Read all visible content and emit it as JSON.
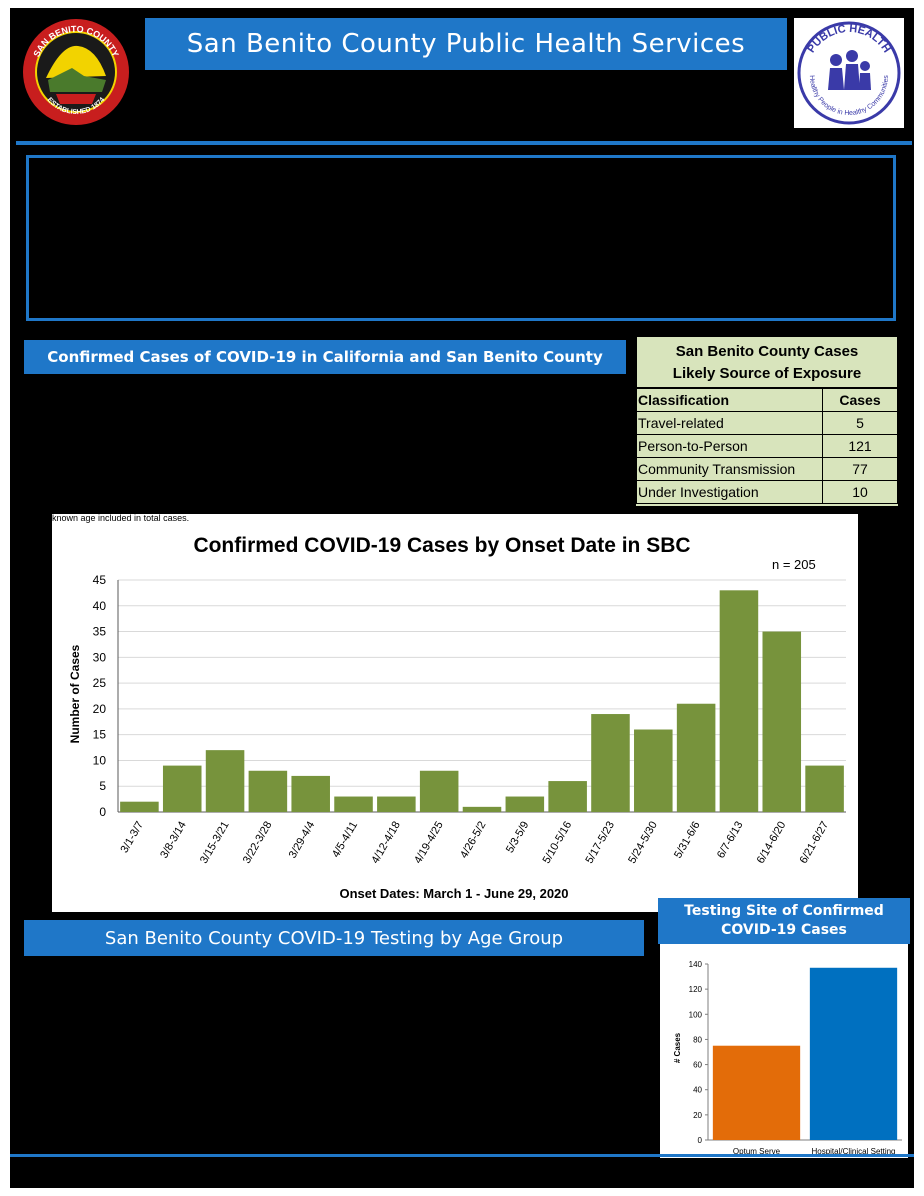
{
  "header": {
    "title": "San Benito County Public Health Services",
    "left_seal": {
      "icon": "county-seal-icon",
      "text_top": "SAN BENITO COUNTY",
      "text_bottom": "ESTABLISHED 1874"
    },
    "right_logo": {
      "icon": "public-health-logo-icon",
      "text_top": "PUBLIC HEALTH",
      "text_bottom": "Healthy People in Healthy Communities"
    }
  },
  "sections": {
    "cases_title": "Confirmed Cases of COVID-19 in California and San Benito County",
    "testing_title": "San Benito County COVID-19 Testing by Age Group",
    "note": "known age included in total cases."
  },
  "exposure_table": {
    "title_line1": "San Benito County Cases",
    "title_line2": "Likely Source of Exposure",
    "headers": [
      "Classification",
      "Cases"
    ],
    "rows": [
      {
        "label": "Travel-related",
        "value": "5"
      },
      {
        "label": "Person-to-Person",
        "value": "121"
      },
      {
        "label": "Community Transmission",
        "value": "77"
      },
      {
        "label": "Under Investigation",
        "value": "10"
      }
    ]
  },
  "testing_site": {
    "title_line1": "Testing Site of Confirmed",
    "title_line2": "COVID-19 Cases"
  },
  "colors": {
    "accent": "#1f77c8",
    "bar": "#77933c",
    "orange": "#e36c09",
    "blue": "#0070c0",
    "table_bg": "#d8e4bc"
  },
  "chart_data": [
    {
      "type": "bar",
      "title": "Confirmed COVID-19 Cases by Onset Date in SBC",
      "annotation": "n = 205",
      "xlabel": "Onset Dates: March 1 - June 29, 2020",
      "ylabel": "Number of Cases",
      "ylim": [
        0,
        45
      ],
      "yticks": [
        0,
        5,
        10,
        15,
        20,
        25,
        30,
        35,
        40,
        45
      ],
      "grid": true,
      "categories": [
        "3/1-3/7",
        "3/8-3/14",
        "3/15-3/21",
        "3/22-3/28",
        "3/29-4/4",
        "4/5-4/11",
        "4/12-4/18",
        "4/19-4/25",
        "4/26-5/2",
        "5/3-5/9",
        "5/10-5/16",
        "5/17-5/23",
        "5/24-5/30",
        "5/31-6/6",
        "6/7-6/13",
        "6/14-6/20",
        "6/21-6/27"
      ],
      "values": [
        2,
        9,
        12,
        8,
        7,
        3,
        3,
        8,
        1,
        3,
        6,
        19,
        16,
        21,
        43,
        35,
        9
      ]
    },
    {
      "type": "bar",
      "title": "Testing Site of Confirmed COVID-19 Cases",
      "ylabel": "# Cases",
      "ylim": [
        0,
        140
      ],
      "yticks": [
        0,
        20,
        40,
        60,
        80,
        100,
        120,
        140
      ],
      "grid": false,
      "categories": [
        "Optum Serve",
        "Hospital/Clinical Setting"
      ],
      "values": [
        75,
        137
      ]
    }
  ]
}
